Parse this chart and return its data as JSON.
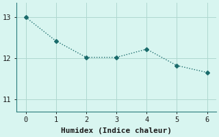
{
  "x": [
    0,
    1,
    2,
    3,
    4,
    5,
    6
  ],
  "y": [
    13.0,
    12.42,
    12.02,
    12.02,
    12.22,
    11.82,
    11.65
  ],
  "line_color": "#1a6b6b",
  "background_color": "#d8f5f0",
  "xlabel": "Humidex (Indice chaleur)",
  "xlabel_fontsize": 8,
  "yticks": [
    11,
    12,
    13
  ],
  "xticks": [
    0,
    1,
    2,
    3,
    4,
    5,
    6
  ],
  "xlim": [
    -0.3,
    6.3
  ],
  "ylim": [
    10.7,
    13.35
  ],
  "grid_color": "#aed8d0",
  "tick_fontsize": 7.5,
  "linewidth": 1.0,
  "markersize": 3,
  "spine_color": "#2a7a7a"
}
